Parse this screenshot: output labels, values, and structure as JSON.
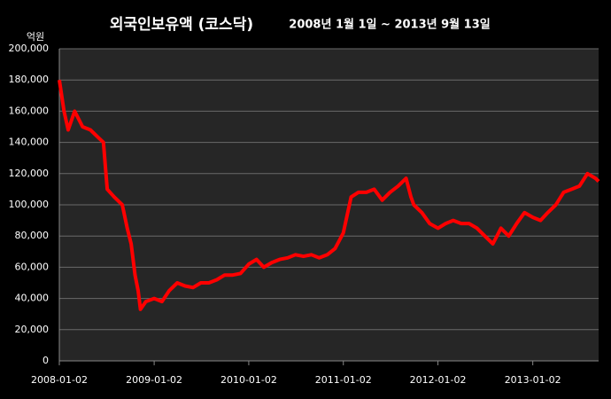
{
  "chart_data": {
    "type": "line",
    "title": "외국인보유액 (코스닥)",
    "subtitle": "2008년 1월 1일 ~ 2013년 9월 13일",
    "y_label": "억원",
    "x": [
      "2008-01-02",
      "2008-01-20",
      "2008-02-05",
      "2008-03-01",
      "2008-04-01",
      "2008-05-01",
      "2008-06-01",
      "2008-06-20",
      "2008-07-05",
      "2008-08-01",
      "2008-09-01",
      "2008-09-20",
      "2008-10-05",
      "2008-10-20",
      "2008-11-01",
      "2008-11-10",
      "2008-12-01",
      "2009-01-02",
      "2009-02-01",
      "2009-03-01",
      "2009-04-01",
      "2009-05-01",
      "2009-06-01",
      "2009-07-01",
      "2009-08-01",
      "2009-09-01",
      "2009-10-01",
      "2009-11-01",
      "2009-12-01",
      "2010-01-02",
      "2010-02-01",
      "2010-03-01",
      "2010-04-01",
      "2010-05-01",
      "2010-06-01",
      "2010-07-01",
      "2010-08-01",
      "2010-09-01",
      "2010-10-01",
      "2010-11-01",
      "2010-12-01",
      "2011-01-02",
      "2011-02-01",
      "2011-03-01",
      "2011-04-01",
      "2011-05-01",
      "2011-06-01",
      "2011-07-01",
      "2011-08-01",
      "2011-09-01",
      "2011-09-20",
      "2011-10-01",
      "2011-11-01",
      "2011-12-01",
      "2012-01-02",
      "2012-02-01",
      "2012-03-01",
      "2012-04-01",
      "2012-05-01",
      "2012-06-01",
      "2012-07-01",
      "2012-08-01",
      "2012-09-01",
      "2012-10-01",
      "2012-11-01",
      "2012-12-01",
      "2013-01-02",
      "2013-02-01",
      "2013-03-01",
      "2013-04-01",
      "2013-05-01",
      "2013-06-01",
      "2013-07-01",
      "2013-08-01",
      "2013-09-01",
      "2013-09-13"
    ],
    "series": [
      {
        "name": "외국인보유액",
        "color": "#ff0000",
        "values": [
          180000,
          160000,
          148000,
          160000,
          150000,
          148000,
          143000,
          140000,
          110000,
          105000,
          100000,
          85000,
          75000,
          55000,
          45000,
          33000,
          38000,
          40000,
          38000,
          45000,
          50000,
          48000,
          47000,
          50000,
          50000,
          52000,
          55000,
          55000,
          56000,
          62000,
          65000,
          60000,
          63000,
          65000,
          66000,
          68000,
          67000,
          68000,
          66000,
          68000,
          72000,
          82000,
          105000,
          108000,
          108000,
          110000,
          103000,
          108000,
          112000,
          117000,
          105000,
          100000,
          95000,
          88000,
          85000,
          88000,
          90000,
          88000,
          88000,
          85000,
          80000,
          75000,
          85000,
          80000,
          88000,
          95000,
          92000,
          90000,
          95000,
          100000,
          108000,
          110000,
          112000,
          120000,
          117000,
          115000
        ]
      }
    ],
    "xlim": [
      "2008-01-02",
      "2013-09-13"
    ],
    "xticks": [
      "2008-01-02",
      "2009-01-02",
      "2010-01-02",
      "2011-01-02",
      "2012-01-02",
      "2013-01-02"
    ],
    "ylim": [
      0,
      200000
    ],
    "yticks": [
      0,
      {
        "value": 20000,
        "label": "20,000"
      },
      {
        "value": 40000,
        "label": "40,000"
      },
      {
        "value": 60000,
        "label": "60,000"
      },
      {
        "value": 80000,
        "label": "80,000"
      },
      {
        "value": 100000,
        "label": "100,000"
      },
      {
        "value": 120000,
        "label": "120,000"
      },
      {
        "value": 140000,
        "label": "140,000"
      },
      {
        "value": 160000,
        "label": "160,000"
      },
      {
        "value": 180000,
        "label": "180,000"
      },
      {
        "value": 200000,
        "label": "200,000"
      }
    ],
    "grid": true
  }
}
